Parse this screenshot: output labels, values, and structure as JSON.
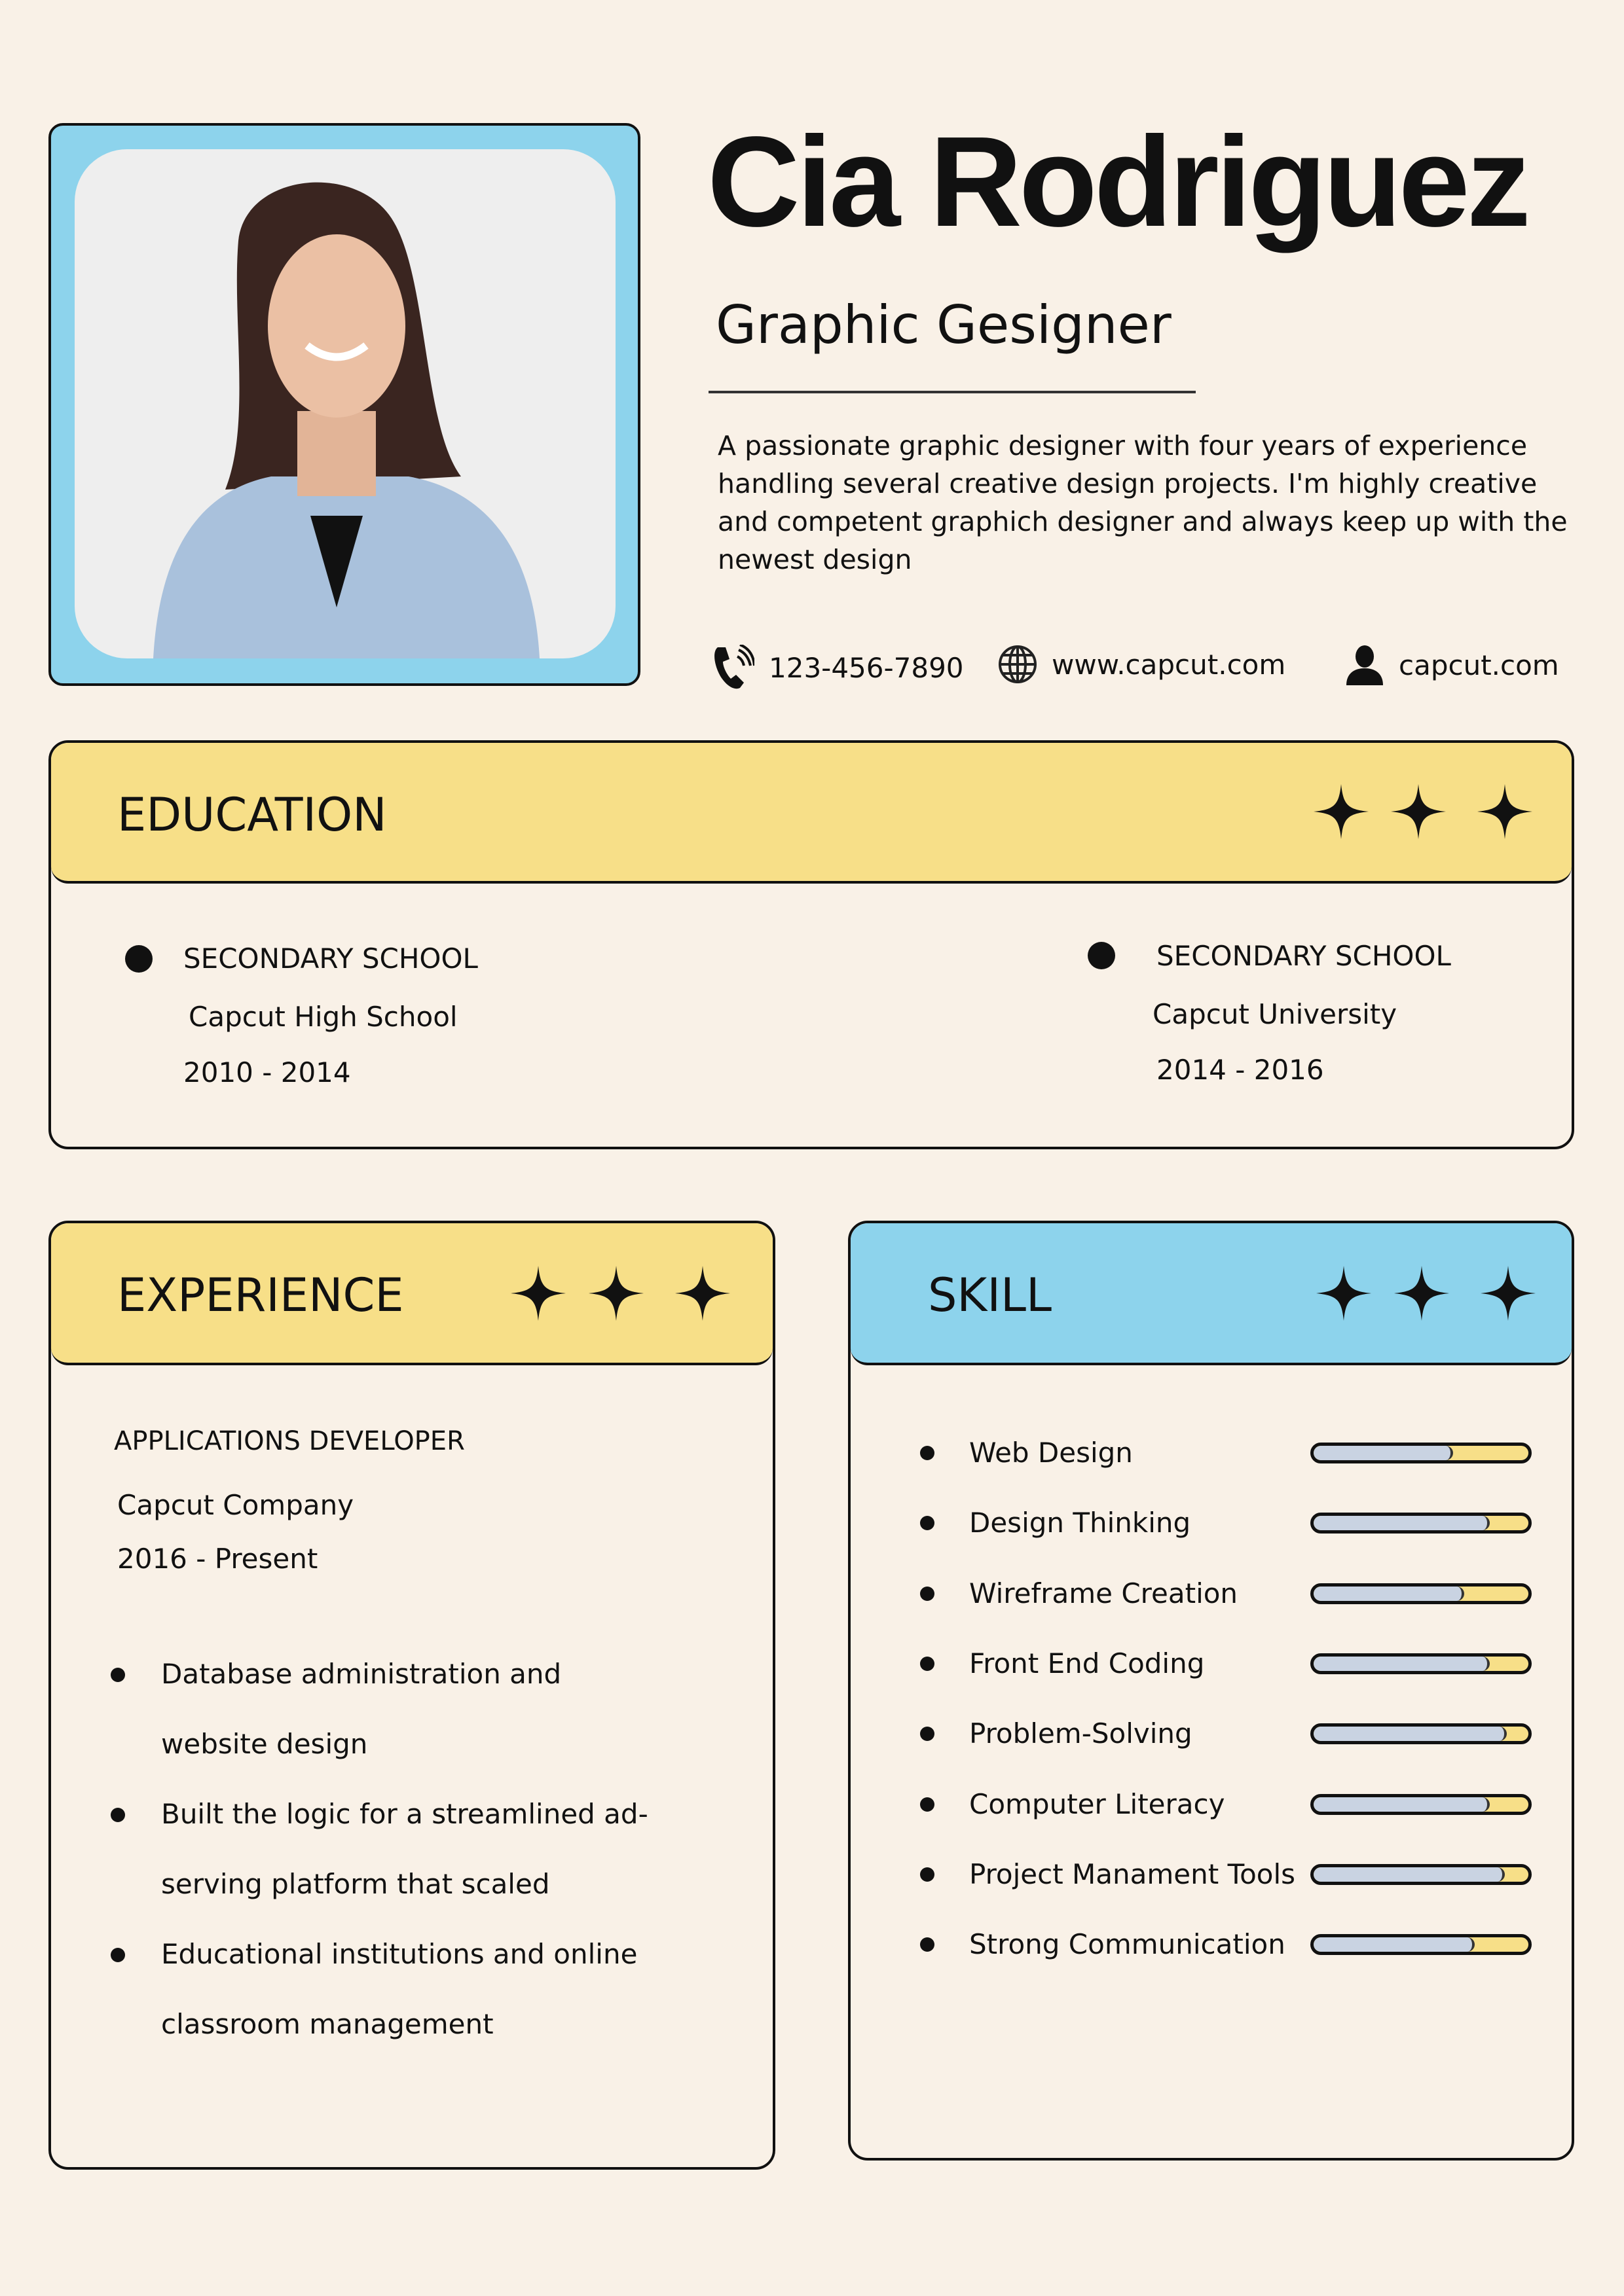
{
  "colors": {
    "background": "#f9f1e7",
    "yellow": "#f7df88",
    "blue": "#8dd3ec",
    "bar_fill": "#c9d3e2"
  },
  "header": {
    "name": "Cia Rodriguez",
    "title": "Graphic Gesigner",
    "bio": "A passionate graphic designer with four years of experience handling several creative design projects. I'm highly creative and competent graphich designer and always keep up with the newest design",
    "contacts": [
      {
        "icon": "phone-icon",
        "text": "123-456-7890"
      },
      {
        "icon": "globe-icon",
        "text": "www.capcut.com"
      },
      {
        "icon": "user-icon",
        "text": "capcut.com"
      }
    ]
  },
  "education": {
    "title": "EDUCATION",
    "entries": [
      {
        "level": "SECONDARY SCHOOL",
        "school": "Capcut High School",
        "years": "2010 - 2014"
      },
      {
        "level": "SECONDARY SCHOOL",
        "school": "Capcut  University",
        "years": "2014 - 2016"
      }
    ]
  },
  "experience": {
    "title": "EXPERIENCE",
    "role": "APPLICATIONS DEVELOPER",
    "company": "Capcut  Company",
    "years": "2016 - Present",
    "bullets": [
      {
        "line1": "Database administration and",
        "line2": "website design"
      },
      {
        "line1": "Built the logic for a streamlined ad-",
        "line2": "serving platform that scaled"
      },
      {
        "line1": "Educational institutions and online",
        "line2": "classroom management"
      }
    ]
  },
  "skill": {
    "title": "SKILL",
    "items": [
      {
        "name": "Web Design",
        "level": 0.65
      },
      {
        "name": "Design Thinking",
        "level": 0.82
      },
      {
        "name": "Wireframe Creation",
        "level": 0.7
      },
      {
        "name": "Front End Coding",
        "level": 0.82
      },
      {
        "name": "Problem-Solving",
        "level": 0.9
      },
      {
        "name": "Computer Literacy",
        "level": 0.82
      },
      {
        "name": "Project Manament Tools",
        "level": 0.89
      },
      {
        "name": "Strong Communication",
        "level": 0.75
      }
    ]
  }
}
